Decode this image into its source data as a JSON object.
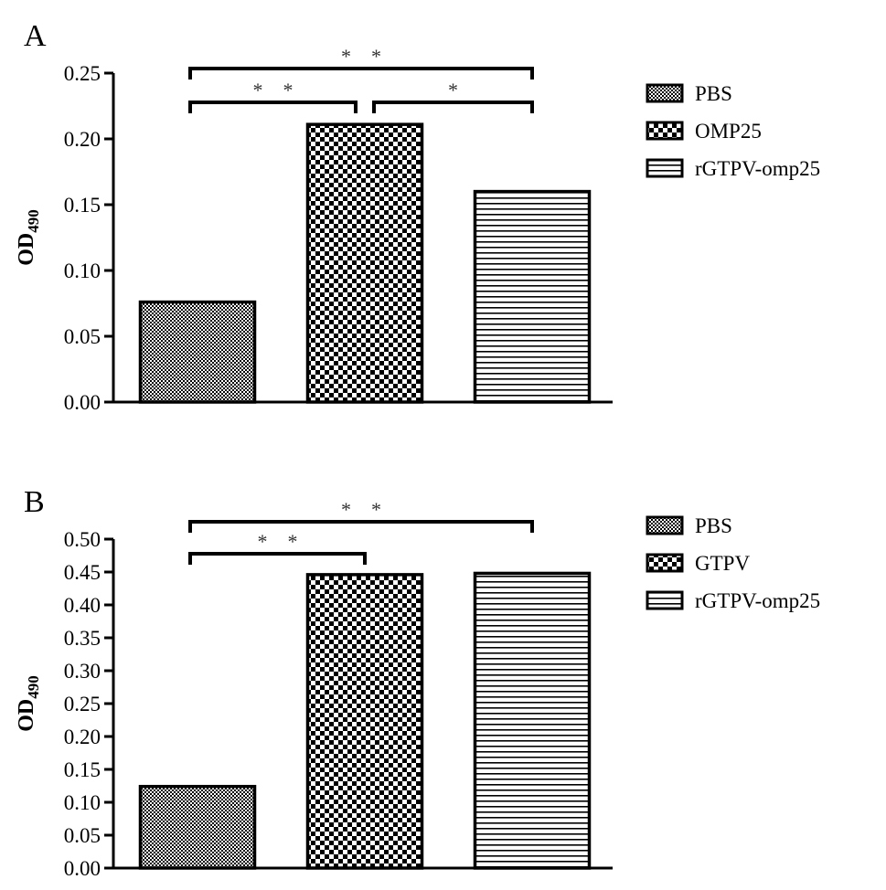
{
  "chart_data": [
    {
      "panel": "A",
      "type": "bar",
      "categories": [
        "PBS",
        "OMP25",
        "rGTPV-omp25"
      ],
      "values": [
        0.076,
        0.211,
        0.16
      ],
      "ylabel": "OD",
      "ylabel_subscript": "490",
      "ylim": [
        0,
        0.25
      ],
      "yticks": [
        "0.00",
        "0.05",
        "0.10",
        "0.15",
        "0.20",
        "0.25"
      ],
      "grid": false,
      "legend_position": "right",
      "legend": [
        "PBS",
        "OMP25",
        "rGTPV-omp25"
      ],
      "annotations": [
        {
          "from": "PBS",
          "to": "rGTPV-omp25",
          "label": "* *",
          "level": 2
        },
        {
          "from": "PBS",
          "to": "OMP25",
          "label": "* *",
          "level": 1
        },
        {
          "from": "OMP25",
          "to": "rGTPV-omp25",
          "label": "*",
          "level": 1
        }
      ]
    },
    {
      "panel": "B",
      "type": "bar",
      "categories": [
        "PBS",
        "GTPV",
        "rGTPV-omp25"
      ],
      "values": [
        0.124,
        0.446,
        0.448
      ],
      "ylabel": "OD",
      "ylabel_subscript": "490",
      "ylim": [
        0,
        0.5
      ],
      "yticks": [
        "0.00",
        "0.05",
        "0.10",
        "0.15",
        "0.20",
        "0.25",
        "0.30",
        "0.35",
        "0.40",
        "0.45",
        "0.50"
      ],
      "grid": false,
      "legend_position": "right",
      "legend": [
        "PBS",
        "GTPV",
        "rGTPV-omp25"
      ],
      "annotations": [
        {
          "from": "PBS",
          "to": "rGTPV-omp25",
          "label": "* *",
          "level": 2
        },
        {
          "from": "PBS",
          "to": "GTPV",
          "label": "* *",
          "level": 1
        }
      ]
    }
  ]
}
